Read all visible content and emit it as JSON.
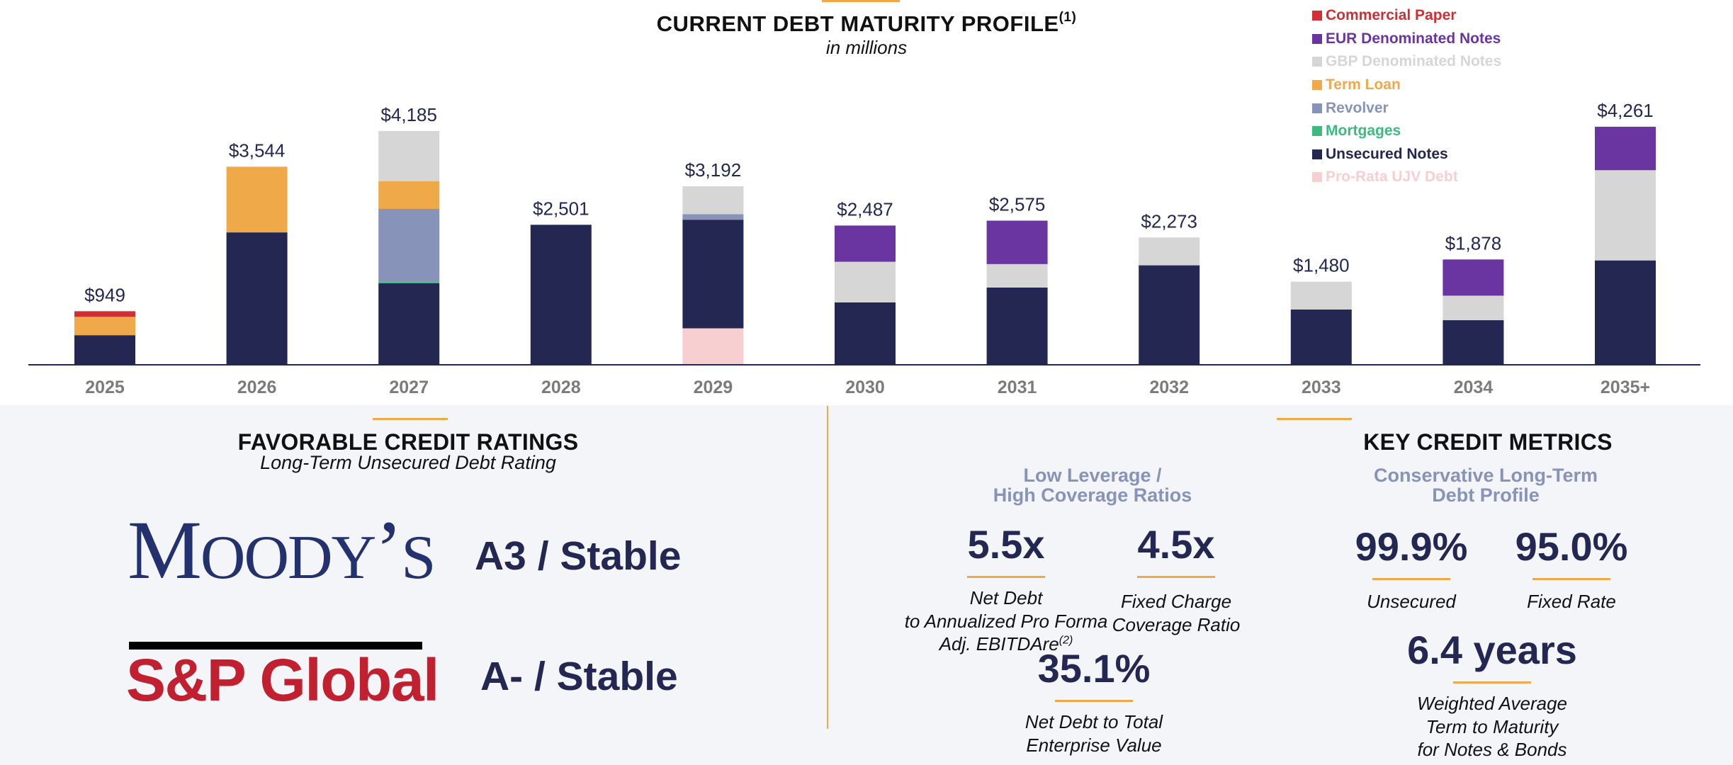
{
  "chart_data": {
    "type": "bar",
    "stacked": true,
    "title": "CURRENT DEBT MATURITY PROFILE",
    "title_footnote": "(1)",
    "subtitle": "in millions",
    "categories": [
      "2025",
      "2026",
      "2027",
      "2028",
      "2029",
      "2030",
      "2031",
      "2032",
      "2033",
      "2034",
      "2035+"
    ],
    "totals": [
      "$949",
      "$3,544",
      "$4,185",
      "$2,501",
      "$3,192",
      "$2,487",
      "$2,575",
      "$2,273",
      "$1,480",
      "$1,878",
      "$4,261"
    ],
    "total_values": [
      949,
      3544,
      4185,
      2501,
      3192,
      2487,
      2575,
      2273,
      1480,
      1878,
      4261
    ],
    "ylim": [
      0,
      4400
    ],
    "legend_position": "top-right",
    "stack_order": [
      "Pro-Rata UJV Debt",
      "Unsecured Notes",
      "Mortgages",
      "Revolver",
      "Term Loan",
      "GBP Denominated Notes",
      "EUR Denominated Notes",
      "Commercial Paper"
    ],
    "series": [
      {
        "name": "Commercial Paper",
        "color": "#d12f34",
        "values": [
          100,
          0,
          0,
          0,
          0,
          0,
          0,
          0,
          0,
          0,
          0
        ]
      },
      {
        "name": "EUR Denominated Notes",
        "color": "#6a35a0",
        "values": [
          0,
          0,
          0,
          0,
          0,
          650,
          780,
          0,
          0,
          650,
          780
        ]
      },
      {
        "name": "GBP Denominated Notes",
        "color": "#d6d6d6",
        "values": [
          0,
          0,
          900,
          0,
          500,
          730,
          420,
          500,
          500,
          440,
          1620
        ]
      },
      {
        "name": "Term Loan",
        "color": "#f0a948",
        "values": [
          330,
          1180,
          500,
          0,
          0,
          0,
          0,
          0,
          0,
          0,
          0
        ]
      },
      {
        "name": "Revolver",
        "color": "#8793b8",
        "values": [
          0,
          0,
          1300,
          0,
          100,
          0,
          0,
          0,
          0,
          0,
          0
        ]
      },
      {
        "name": "Mortgages",
        "color": "#3dbb7e",
        "values": [
          0,
          0,
          35,
          0,
          0,
          0,
          0,
          0,
          0,
          0,
          0
        ]
      },
      {
        "name": "Unsecured Notes",
        "color": "#242752",
        "values": [
          519,
          2364,
          1450,
          2501,
          1950,
          1107,
          1375,
          1773,
          980,
          788,
          1861
        ]
      },
      {
        "name": "Pro-Rata UJV Debt",
        "color": "#f8cfd0",
        "values": [
          0,
          0,
          0,
          0,
          642,
          0,
          0,
          0,
          0,
          0,
          0
        ]
      }
    ]
  },
  "legend": {
    "items": [
      {
        "label": "Commercial Paper",
        "color": "#d12f34"
      },
      {
        "label": "EUR Denominated Notes",
        "color": "#6a35a0"
      },
      {
        "label": "GBP Denominated Notes",
        "color": "#d6d6d6"
      },
      {
        "label": "Term Loan",
        "color": "#f0a948"
      },
      {
        "label": "Revolver",
        "color": "#8793b8"
      },
      {
        "label": "Mortgages",
        "color": "#3dbb7e"
      },
      {
        "label": "Unsecured Notes",
        "color": "#242752"
      },
      {
        "label": "Pro-Rata UJV Debt",
        "color": "#f8cfd0"
      }
    ]
  },
  "ratings": {
    "title": "FAVORABLE CREDIT RATINGS",
    "subtitle": "Long-Term Unsecured Debt Rating",
    "moodys_logo_text": "Moody's",
    "moodys_rating": "A3 / Stable",
    "sp_logo_text": "S&P Global",
    "sp_rating": "A- / Stable"
  },
  "metrics": {
    "title": "KEY CREDIT METRICS",
    "leverage_heading_line1": "Low Leverage /",
    "leverage_heading_line2": "High Coverage Ratios",
    "debt_profile_heading_line1": "Conservative Long-Term",
    "debt_profile_heading_line2": "Debt Profile",
    "net_debt_ebitda": {
      "value": "5.5x",
      "label_line1": "Net Debt",
      "label_line2": "to Annualized Pro Forma",
      "label_line3": "Adj. EBITDAre",
      "footnote": "(2)"
    },
    "fixed_charge": {
      "value": "4.5x",
      "label_line1": "Fixed Charge",
      "label_line2": "Coverage Ratio"
    },
    "net_debt_tev": {
      "value": "35.1%",
      "label_line1": "Net Debt to Total",
      "label_line2": "Enterprise Value"
    },
    "unsecured": {
      "value": "99.9%",
      "label": "Unsecured"
    },
    "fixed_rate": {
      "value": "95.0%",
      "label": "Fixed Rate"
    },
    "term_to_maturity": {
      "value": "6.4 years",
      "label_line1": "Weighted Average",
      "label_line2": "Term to Maturity",
      "label_line3": "for Notes & Bonds"
    }
  }
}
